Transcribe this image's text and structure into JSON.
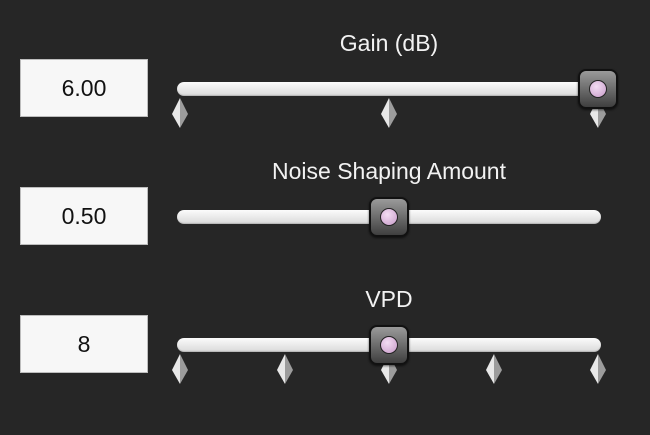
{
  "params": [
    {
      "id": "gain",
      "title": "Gain (dB)",
      "value_text": "6.00",
      "position_fraction": 1.0,
      "tick_count": 3
    },
    {
      "id": "noise-shaping",
      "title": "Noise Shaping Amount",
      "value_text": "0.50",
      "position_fraction": 0.5,
      "tick_count": 0
    },
    {
      "id": "vpd",
      "title": "VPD",
      "value_text": "8",
      "position_fraction": 0.5,
      "tick_count": 5
    }
  ],
  "colors": {
    "background": "#262626",
    "label_text": "#f2f2f2",
    "value_box": "#f7f7f7",
    "track": "#e6e6e6",
    "thumb_dot": "#d9b1d9"
  }
}
